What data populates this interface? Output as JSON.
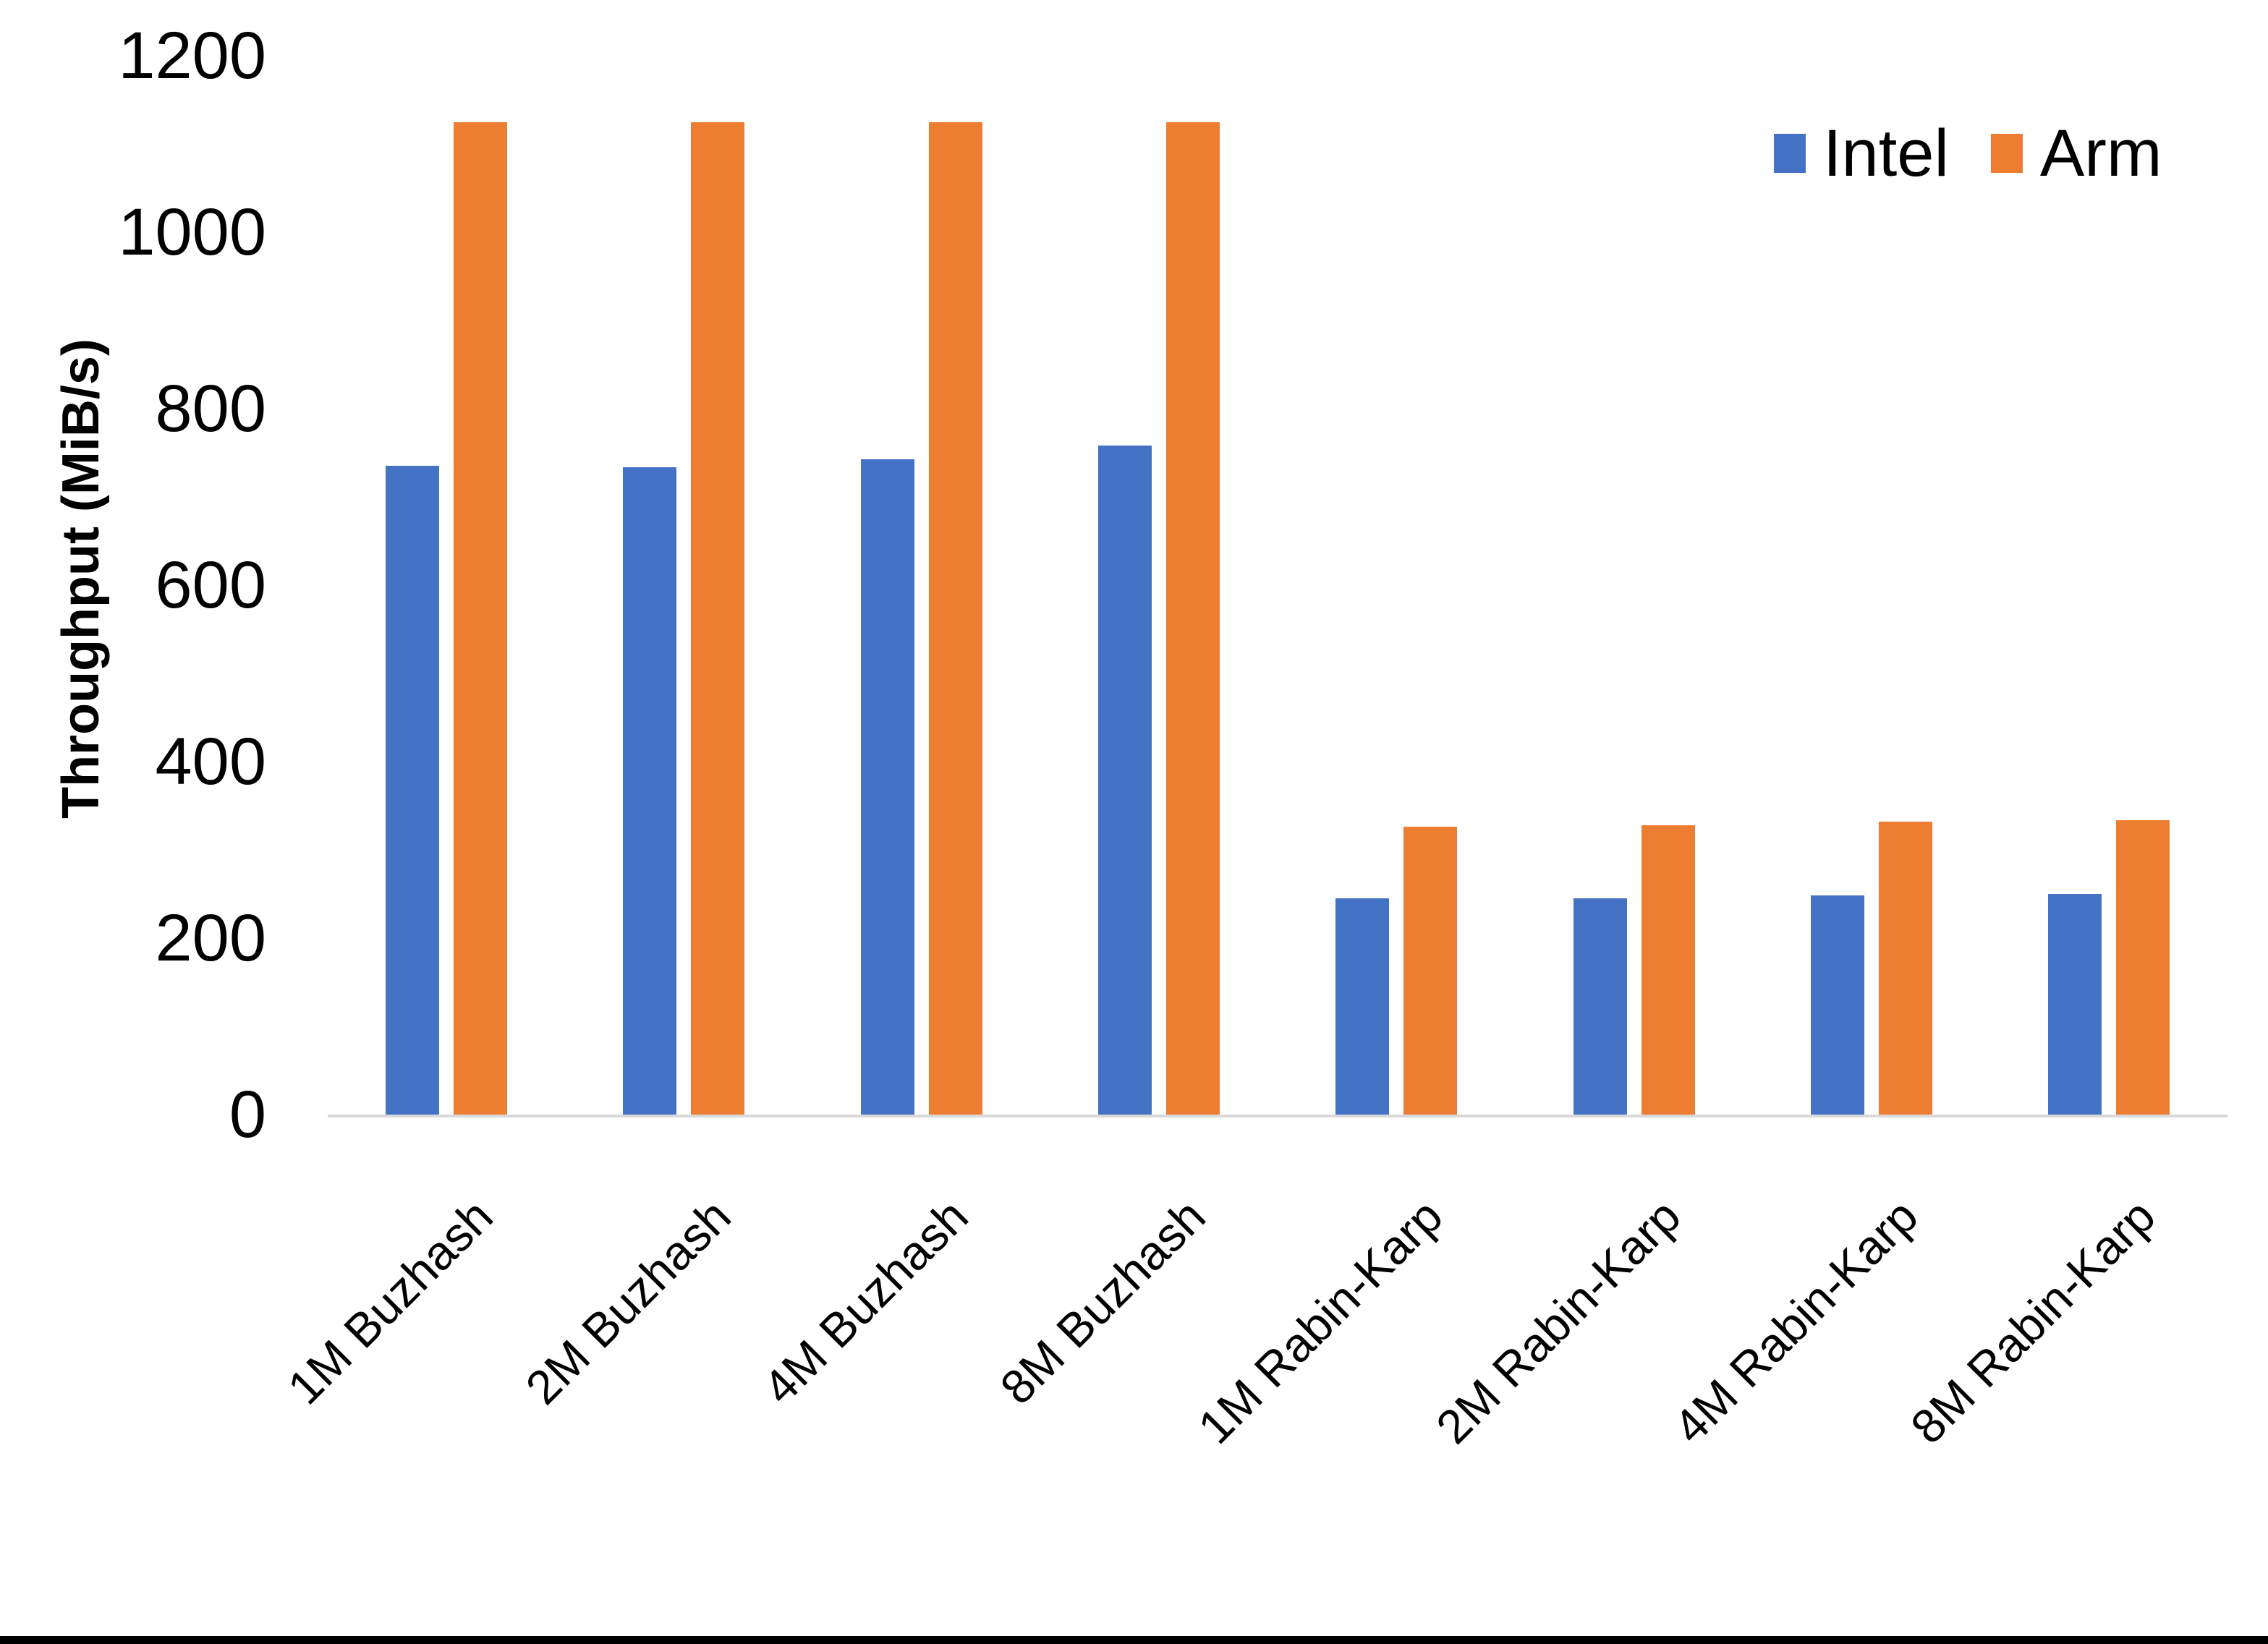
{
  "chart_data": {
    "type": "bar",
    "title": "",
    "categories": [
      "1M Buzhash",
      "2M Buzhash",
      "4M Buzhash",
      "8M Buzhash",
      "1M Rabin-Karp",
      "2M Rabin-Karp",
      "4M Rabin-Karp",
      "8M Rabin-Karp"
    ],
    "series": [
      {
        "name": "Intel",
        "color": "#4472C4",
        "values": [
          735,
          734,
          743,
          758,
          245,
          245,
          248,
          250
        ]
      },
      {
        "name": "Arm",
        "color": "#ED7D31",
        "values": [
          1125,
          1125,
          1125,
          1125,
          326,
          328,
          332,
          334
        ]
      }
    ],
    "xlabel": "",
    "ylabel": "Throughput (MiB/s)",
    "ylim": [
      0,
      1200
    ],
    "yticks": [
      0,
      200,
      400,
      600,
      800,
      1000,
      1200
    ],
    "grid": false,
    "legend_position": "top-right",
    "axis_line_color": "#D9D9D9",
    "text_color": "#000000"
  }
}
